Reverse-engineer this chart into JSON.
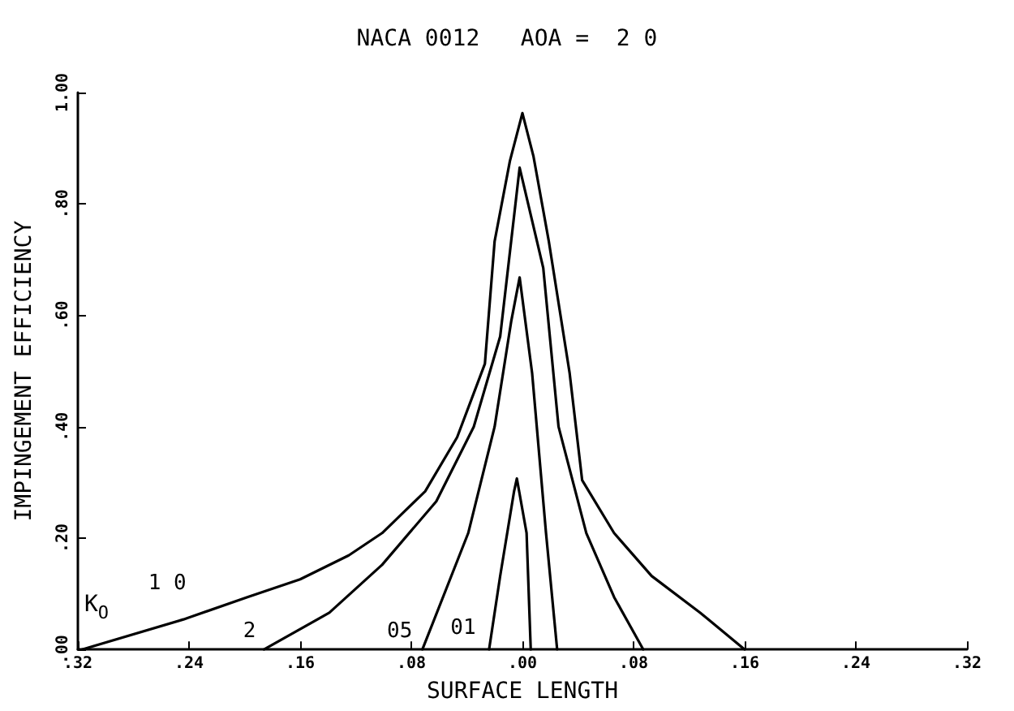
{
  "chart_data": {
    "type": "line",
    "title": "NACA 0012   AOA =  2 0",
    "xlabel": "SURFACE LENGTH",
    "ylabel": "IMPINGEMENT EFFICIENCY",
    "annotations": [
      "K$_{O}$"
    ],
    "xlim": [
      -0.32,
      0.32
    ],
    "ylim": [
      0,
      1
    ],
    "xticks": [
      {
        "value": -0.32,
        "label": ".32"
      },
      {
        "value": -0.24,
        "label": ".24"
      },
      {
        "value": -0.16,
        "label": ".16"
      },
      {
        "value": -0.08,
        "label": ".08"
      },
      {
        "value": 0,
        "label": ".00"
      },
      {
        "value": 0.08,
        "label": ".08"
      },
      {
        "value": 0.16,
        "label": ".16"
      },
      {
        "value": 0.24,
        "label": ".24"
      },
      {
        "value": 0.32,
        "label": ".32"
      }
    ],
    "yticks": [
      {
        "value": 0,
        "label": ".00"
      },
      {
        "value": 0.2,
        "label": ".20"
      },
      {
        "value": 0.4,
        "label": ".40"
      },
      {
        "value": 0.6,
        "label": ".60"
      },
      {
        "value": 0.8,
        "label": ".80"
      },
      {
        "value": 1,
        "label": "1.00"
      }
    ],
    "grid": false,
    "legend": false,
    "marker": "none",
    "line_style": "solid",
    "series": [
      {
        "name": "1 0",
        "color": "#000000",
        "x": [
          -0.317,
          -0.244,
          -0.198,
          -0.16,
          -0.125,
          -0.101,
          -0.07,
          -0.047,
          -0.027,
          -0.02,
          -0.009,
          0,
          0.008,
          0.019,
          0.034,
          0.043,
          0.066,
          0.093,
          0.128,
          0.16
        ],
        "values": [
          0,
          0.054,
          0.094,
          0.126,
          0.169,
          0.209,
          0.284,
          0.381,
          0.513,
          0.733,
          0.877,
          0.963,
          0.885,
          0.733,
          0.496,
          0.304,
          0.209,
          0.132,
          0.066,
          0
        ]
      },
      {
        "name": "2",
        "color": "#000000",
        "x": [
          -0.186,
          -0.139,
          -0.101,
          -0.062,
          -0.035,
          -0.016,
          -0.002,
          0.015,
          0.026,
          0.046,
          0.066,
          0.087
        ],
        "values": [
          0,
          0.066,
          0.152,
          0.266,
          0.4,
          0.562,
          0.865,
          0.685,
          0.4,
          0.209,
          0.094,
          0
        ]
      },
      {
        "name": "05",
        "color": "#000000",
        "x": [
          -0.072,
          -0.039,
          -0.02,
          -0.008,
          -0.002,
          0.007,
          0.017,
          0.025
        ],
        "values": [
          0,
          0.209,
          0.4,
          0.59,
          0.668,
          0.496,
          0.209,
          0
        ]
      },
      {
        "name": "01",
        "color": "#000000",
        "x": [
          -0.024,
          -0.016,
          -0.006,
          -0.004,
          0.003,
          0.006
        ],
        "values": [
          0,
          0.132,
          0.284,
          0.307,
          0.209,
          0
        ]
      }
    ]
  }
}
